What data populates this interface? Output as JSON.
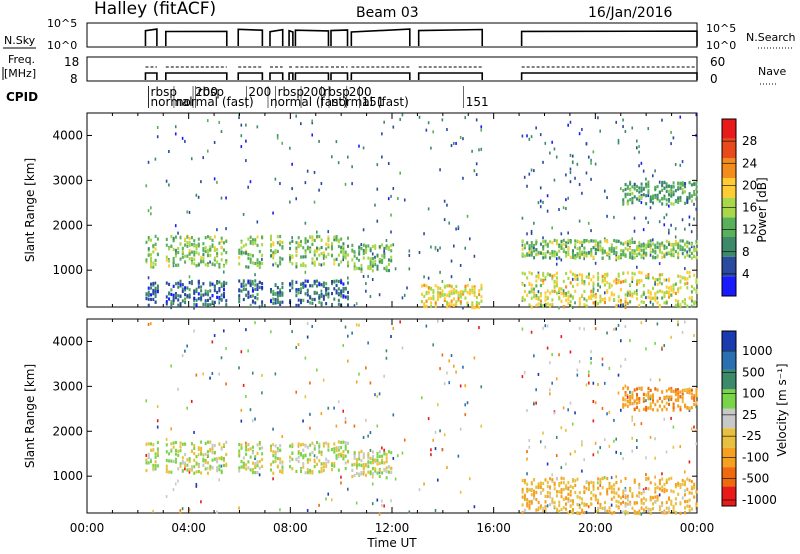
{
  "header": {
    "station": "Halley (fitACF)",
    "beam": "Beam 03",
    "date": "16/Jan/2016"
  },
  "status_panels": {
    "nsky": {
      "label": "N.Sky",
      "ticks": [
        "10^5",
        "10^0"
      ],
      "right_label": "N.Search",
      "right_ticks": [
        "10^5",
        "10^0"
      ]
    },
    "freq": {
      "label_line1": "Freq.",
      "label_line2": "[MHz]",
      "ticks": [
        "18",
        "8"
      ],
      "right_label": "Nave",
      "right_ticks": [
        "60",
        "0"
      ]
    },
    "cpid": {
      "label": "CPID",
      "labels": [
        {
          "text": "rbsp",
          "hour": 2.5,
          "row": 0
        },
        {
          "text": "normal",
          "hour": 2.5,
          "row": 1
        },
        {
          "text": "200",
          "hour": 4.25,
          "row": 0
        },
        {
          "text": "normal (fast)",
          "hour": 3.5,
          "row": 1
        },
        {
          "text": "rbsp",
          "hour": 4.35,
          "row": 0
        },
        {
          "text": "200",
          "hour": 6.35,
          "row": 0
        },
        {
          "text": "rbsp",
          "hour": 7.5,
          "row": 0
        },
        {
          "text": "200",
          "hour": 8.5,
          "row": 0
        },
        {
          "text": "normal (fast)",
          "hour": 7.2,
          "row": 1
        },
        {
          "text": "rbsp",
          "hour": 9.3,
          "row": 0
        },
        {
          "text": "200",
          "hour": 10.3,
          "row": 0
        },
        {
          "text": "normal (fast)",
          "hour": 9.6,
          "row": 1
        },
        {
          "text": "151",
          "hour": 10.8,
          "row": 1
        },
        {
          "text": "151",
          "hour": 14.9,
          "row": 1
        }
      ]
    }
  },
  "colors": {
    "power_scale": [
      "#1a1aff",
      "#2a4aa0",
      "#3c8a6a",
      "#59b05a",
      "#a8d84a",
      "#ffcc33",
      "#f28c1a",
      "#e84a1a",
      "#e81a1a"
    ],
    "velocity_scale": [
      "#e81a1a",
      "#ee6a10",
      "#f5a020",
      "#e8c040",
      "#c8c8c8",
      "#c8c8c8",
      "#7ad44a",
      "#3c8a6a",
      "#2a70b0",
      "#1a3ab0"
    ]
  },
  "chart_data": [
    {
      "type": "heatmap",
      "panel": "power",
      "xlabel": "",
      "ylabel": "Slant Range [km]",
      "xlim": [
        0,
        24
      ],
      "ylim": [
        180,
        4500
      ],
      "yticks": [
        "1000",
        "2000",
        "3000",
        "4000"
      ],
      "colorbar": {
        "label": "Power [dB]",
        "range": [
          0,
          32
        ],
        "tick_labels": [
          "4",
          "8",
          "12",
          "16",
          "20",
          "24",
          "28"
        ]
      },
      "observation_intervals_hours": [
        [
          2.3,
          2.75
        ],
        [
          3.1,
          5.5
        ],
        [
          5.95,
          6.9
        ],
        [
          7.2,
          7.7
        ],
        [
          7.95,
          8.1
        ],
        [
          8.2,
          9.5
        ],
        [
          9.6,
          10.25
        ],
        [
          10.4,
          12.7
        ],
        [
          13.05,
          15.55
        ],
        [
          17.1,
          24.0
        ]
      ],
      "echo_bands": [
        {
          "hours": [
            2.3,
            10.3
          ],
          "range_km": [
            1100,
            1800
          ],
          "typical_power_db": 14
        },
        {
          "hours": [
            2.3,
            10.3
          ],
          "range_km": [
            250,
            800
          ],
          "typical_power_db": 6
        },
        {
          "hours": [
            10.4,
            12.0
          ],
          "range_km": [
            1000,
            1600
          ],
          "typical_power_db": 13
        },
        {
          "hours": [
            13.1,
            15.5
          ],
          "range_km": [
            200,
            700
          ],
          "typical_power_db": 19
        },
        {
          "hours": [
            17.1,
            24.0
          ],
          "range_km": [
            200,
            1000
          ],
          "typical_power_db": 18
        },
        {
          "hours": [
            17.1,
            24.0
          ],
          "range_km": [
            1300,
            1700
          ],
          "typical_power_db": 14
        },
        {
          "hours": [
            21.0,
            24.0
          ],
          "range_km": [
            2500,
            3000
          ],
          "typical_power_db": 10
        }
      ]
    },
    {
      "type": "heatmap",
      "panel": "velocity",
      "xlabel": "Time UT",
      "ylabel": "Slant Range [km]",
      "xlim": [
        0,
        24
      ],
      "ylim": [
        180,
        4500
      ],
      "xticks": [
        "00:00",
        "04:00",
        "08:00",
        "12:00",
        "16:00",
        "20:00",
        "00:00"
      ],
      "yticks": [
        "1000",
        "2000",
        "3000",
        "4000"
      ],
      "colorbar": {
        "label": "Velocity [m s⁻¹]",
        "tick_labels": [
          "1000",
          "500",
          "100",
          "25",
          "-25",
          "-100",
          "-500",
          "-1000"
        ]
      },
      "echo_bands": [
        {
          "hours": [
            2.3,
            10.3
          ],
          "range_km": [
            1100,
            1800
          ],
          "typical_velocity": 0
        },
        {
          "hours": [
            10.4,
            12.0
          ],
          "range_km": [
            1000,
            1600
          ],
          "typical_velocity": 0
        },
        {
          "hours": [
            17.1,
            24.0
          ],
          "range_km": [
            200,
            1000
          ],
          "typical_velocity": -100
        },
        {
          "hours": [
            21.0,
            24.0
          ],
          "range_km": [
            2500,
            3000
          ],
          "typical_velocity": -200
        }
      ]
    }
  ]
}
